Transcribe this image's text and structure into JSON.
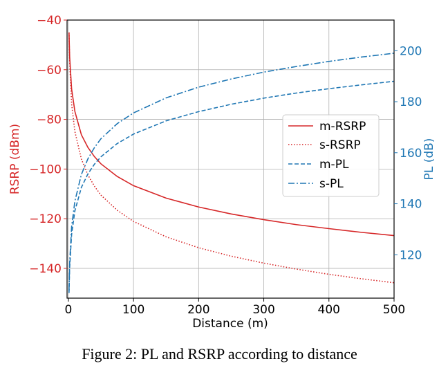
{
  "caption": "Figure 2: PL and RSRP according to distance",
  "colors": {
    "rsrp": "#d62728",
    "pl": "#1f77b4",
    "grid": "#b0b0b0",
    "axis": "#000000"
  },
  "chart_data": {
    "type": "line",
    "title": "",
    "xlabel": "Distance (m)",
    "ylabel_left": "RSRP (dBm)",
    "ylabel_right": "PL (dB)",
    "xlim": [
      -2,
      500
    ],
    "ylim_left": [
      -152,
      -40
    ],
    "ylim_right": [
      103,
      212
    ],
    "xticks": [
      0,
      100,
      200,
      300,
      400,
      500
    ],
    "yticks_left": [
      -40,
      -60,
      -80,
      -100,
      -120,
      -140
    ],
    "yticks_right": [
      120,
      140,
      160,
      180,
      200
    ],
    "grid": true,
    "legend_position": "center-right",
    "x": [
      1,
      2,
      5,
      10,
      20,
      30,
      40,
      50,
      75,
      100,
      150,
      200,
      250,
      300,
      350,
      400,
      450,
      500
    ],
    "series": [
      {
        "name": "m-RSRP",
        "axis": "left",
        "style": "solid",
        "values": [
          -45,
          -55,
          -67.8,
          -76.8,
          -86.2,
          -91.3,
          -95.0,
          -97.9,
          -103.0,
          -106.7,
          -111.7,
          -115.3,
          -118.1,
          -120.4,
          -122.4,
          -124.0,
          -125.5,
          -126.8
        ]
      },
      {
        "name": "s-RSRP",
        "axis": "left",
        "style": "dotted",
        "values": [
          -45,
          -57,
          -73.8,
          -84.9,
          -96.0,
          -102.4,
          -106.9,
          -110.5,
          -116.6,
          -121.1,
          -127.3,
          -131.7,
          -135.1,
          -137.9,
          -140.3,
          -142.4,
          -144.2,
          -145.8
        ]
      },
      {
        "name": "m-PL",
        "axis": "right",
        "style": "dashed",
        "values": [
          105,
          115,
          128,
          137.2,
          146.4,
          151.7,
          155.5,
          158.4,
          163.6,
          167.3,
          172.5,
          176.1,
          179.0,
          181.4,
          183.4,
          185.1,
          186.6,
          188.0
        ]
      },
      {
        "name": "s-PL",
        "axis": "right",
        "style": "dashdot",
        "values": [
          106,
          117,
          131,
          141.0,
          151.5,
          157.6,
          162.0,
          165.5,
          171.4,
          175.6,
          181.5,
          185.7,
          188.9,
          191.6,
          193.8,
          195.8,
          197.5,
          199.0
        ]
      }
    ]
  }
}
